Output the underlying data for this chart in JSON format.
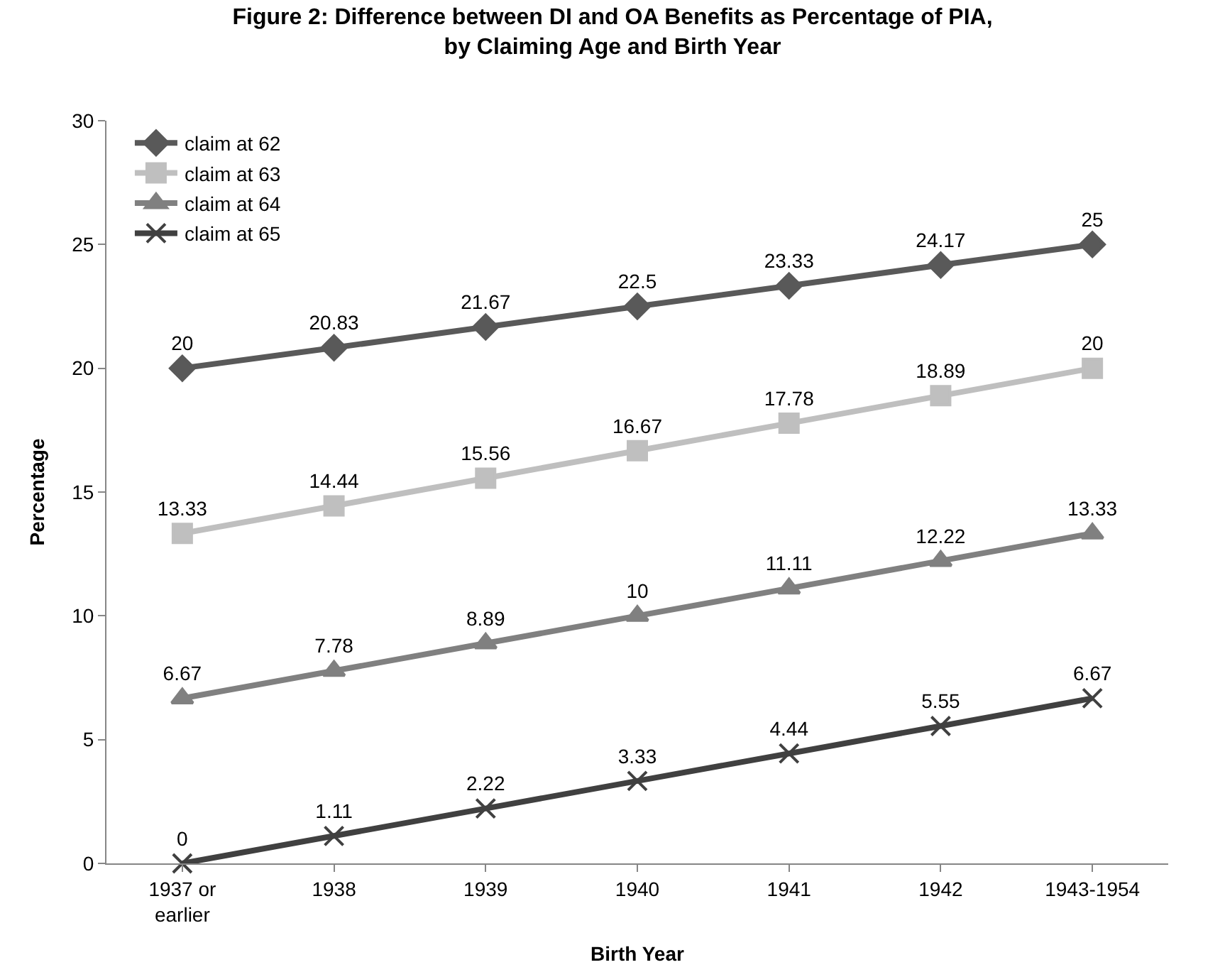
{
  "chart_data": {
    "type": "line",
    "title": "Figure 2: Difference between DI and OA Benefits as Percentage of PIA, by Claiming Age and Birth Year",
    "xlabel": "Birth Year",
    "ylabel": "Percentage",
    "categories": [
      "1937 or earlier",
      "1938",
      "1939",
      "1940",
      "1941",
      "1942",
      "1943-1954"
    ],
    "series": [
      {
        "name": "claim at 62",
        "color": "#595959",
        "marker": "diamond",
        "values": [
          20,
          20.83,
          21.67,
          22.5,
          23.33,
          24.17,
          25
        ]
      },
      {
        "name": "claim at 63",
        "color": "#bfbfbf",
        "marker": "square",
        "values": [
          13.33,
          14.44,
          15.56,
          16.67,
          17.78,
          18.89,
          20
        ]
      },
      {
        "name": "claim at 64",
        "color": "#808080",
        "marker": "triangle",
        "values": [
          6.67,
          7.78,
          8.89,
          10,
          11.11,
          12.22,
          13.33
        ]
      },
      {
        "name": "claim at 65",
        "color": "#404040",
        "marker": "cross",
        "values": [
          0,
          1.11,
          2.22,
          3.33,
          4.44,
          5.55,
          6.67
        ]
      }
    ],
    "ylim": [
      0,
      30
    ],
    "yticks": [
      0,
      5,
      10,
      15,
      20,
      25,
      30
    ],
    "legend": "top left",
    "data_labels": true,
    "line_style": "solid"
  }
}
